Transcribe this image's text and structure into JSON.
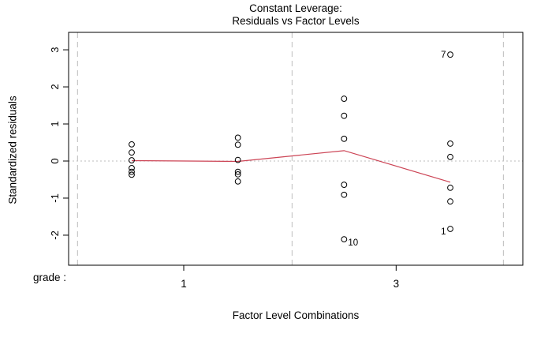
{
  "chart_data": {
    "type": "scatter",
    "title_lines": [
      "Constant Leverage:",
      "Residuals vs Factor Levels"
    ],
    "xlabel": "Factor Level Combinations",
    "ylabel": "Standardized residuals",
    "factor_axis_label": "grade :",
    "xlim": [
      0.406,
      4.683
    ],
    "ylim": [
      -2.81,
      3.47
    ],
    "y_ticks": [
      -2,
      -1,
      0,
      1,
      2,
      3
    ],
    "x_ticks": [
      {
        "pos": 1.49,
        "label": "1"
      },
      {
        "pos": 3.49,
        "label": "3"
      }
    ],
    "group_separators": [
      0.49,
      2.51,
      4.5
    ],
    "zero_reference": 0,
    "grid": true,
    "legend": "none",
    "groups": [
      {
        "x": 1,
        "residuals": [
          0.45,
          0.23,
          0.02,
          -0.19,
          -0.29,
          -0.37
        ]
      },
      {
        "x": 2,
        "residuals": [
          0.63,
          0.44,
          0.03,
          -0.29,
          -0.36,
          -0.55
        ]
      },
      {
        "x": 3,
        "residuals": [
          1.68,
          1.22,
          0.6,
          -0.64,
          -0.91,
          -2.11
        ]
      },
      {
        "x": 4,
        "residuals": [
          2.87,
          0.47,
          0.11,
          -0.72,
          -1.09,
          -1.83
        ]
      }
    ],
    "trend_line": {
      "points": [
        [
          1,
          0.01
        ],
        [
          2,
          -0.01
        ],
        [
          3,
          0.28
        ],
        [
          4,
          -0.57
        ]
      ]
    },
    "labeled_points": [
      {
        "label": "7",
        "x": 4,
        "y": 2.87,
        "side": "left",
        "dy": 4
      },
      {
        "label": "10",
        "x": 3,
        "y": -2.11,
        "side": "right",
        "dy": 8
      },
      {
        "label": "1",
        "x": 4,
        "y": -1.83,
        "side": "left",
        "dy": 7
      }
    ],
    "colors": {
      "points": "#000000",
      "grid": "#bdbdbd",
      "line": "#cc4455",
      "axis": "#000000",
      "background": "#ffffff"
    }
  }
}
